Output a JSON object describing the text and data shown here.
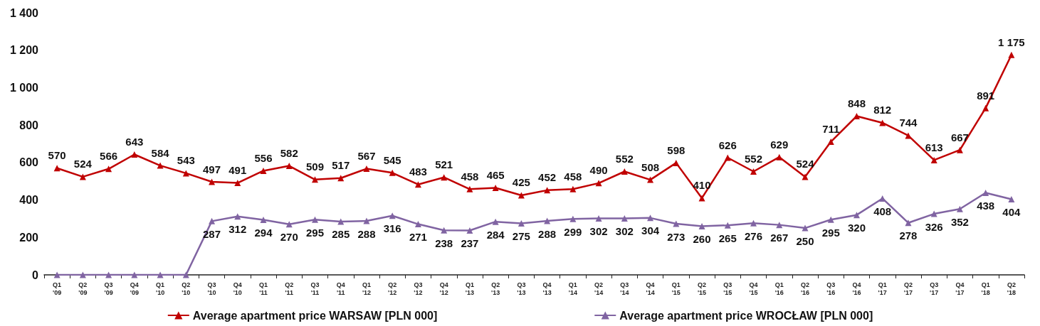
{
  "chart_data": {
    "type": "line",
    "categories": [
      "Q1\n'09",
      "Q2\n'09",
      "Q3\n'09",
      "Q4\n'09",
      "Q1\n'10",
      "Q2\n'10",
      "Q3\n'10",
      "Q4\n'10",
      "Q1\n'11",
      "Q2\n'11",
      "Q3\n'11",
      "Q4\n'11",
      "Q1\n'12",
      "Q2\n'12",
      "Q3\n'12",
      "Q4\n'12",
      "Q1\n'13",
      "Q2\n'13",
      "Q3\n'13",
      "Q4\n'13",
      "Q1\n'14",
      "Q2\n'14",
      "Q3\n'14",
      "Q4\n'14",
      "Q1\n'15",
      "Q2\n'15",
      "Q3\n'15",
      "Q4\n'15",
      "Q1\n'16",
      "Q2\n'16",
      "Q3\n'16",
      "Q4\n'16",
      "Q1\n'17",
      "Q2\n'17",
      "Q3\n'17",
      "Q4\n'17",
      "Q1\n'18",
      "Q2\n'18"
    ],
    "series": [
      {
        "name": "Average apartment price WARSAW [PLN 000]",
        "color": "#c00000",
        "values": [
          570,
          524,
          566,
          643,
          584,
          543,
          497,
          491,
          556,
          582,
          509,
          517,
          567,
          545,
          483,
          521,
          458,
          465,
          425,
          452,
          458,
          490,
          552,
          508,
          598,
          410,
          626,
          552,
          629,
          524,
          711,
          848,
          812,
          744,
          613,
          667,
          891,
          1175
        ],
        "value_labels": [
          "570",
          "524",
          "566",
          "643",
          "584",
          "543",
          "497",
          "491",
          "556",
          "582",
          "509",
          "517",
          "567",
          "545",
          "483",
          "521",
          "458",
          "465",
          "425",
          "452",
          "458",
          "490",
          "552",
          "508",
          "598",
          "410",
          "626",
          "552",
          "629",
          "524",
          "711",
          "848",
          "812",
          "744",
          "613",
          "667",
          "891",
          "1 175"
        ]
      },
      {
        "name": "Average apartment price WROCŁAW [PLN 000]",
        "color": "#8064a2",
        "values": [
          0,
          0,
          0,
          0,
          0,
          0,
          287,
          312,
          294,
          270,
          295,
          285,
          288,
          316,
          271,
          238,
          237,
          284,
          275,
          288,
          299,
          302,
          302,
          304,
          273,
          260,
          265,
          276,
          267,
          250,
          295,
          320,
          408,
          278,
          326,
          352,
          438,
          404
        ],
        "value_labels": [
          null,
          null,
          null,
          null,
          null,
          null,
          "287",
          "312",
          "294",
          "270",
          "295",
          "285",
          "288",
          "316",
          "271",
          "238",
          "237",
          "284",
          "275",
          "288",
          "299",
          "302",
          "302",
          "304",
          "273",
          "260",
          "265",
          "276",
          "267",
          "250",
          "295",
          "320",
          "408",
          "278",
          "326",
          "352",
          "438",
          "404"
        ]
      }
    ],
    "ylim": [
      0,
      1400
    ],
    "yticks": [
      0,
      200,
      400,
      600,
      800,
      {
        "value": 1000,
        "label": "1 000"
      },
      {
        "value": 1200,
        "label": "1 200"
      },
      {
        "value": 1400,
        "label": "1 400"
      }
    ],
    "legend": "bottom",
    "marker": "triangle"
  }
}
